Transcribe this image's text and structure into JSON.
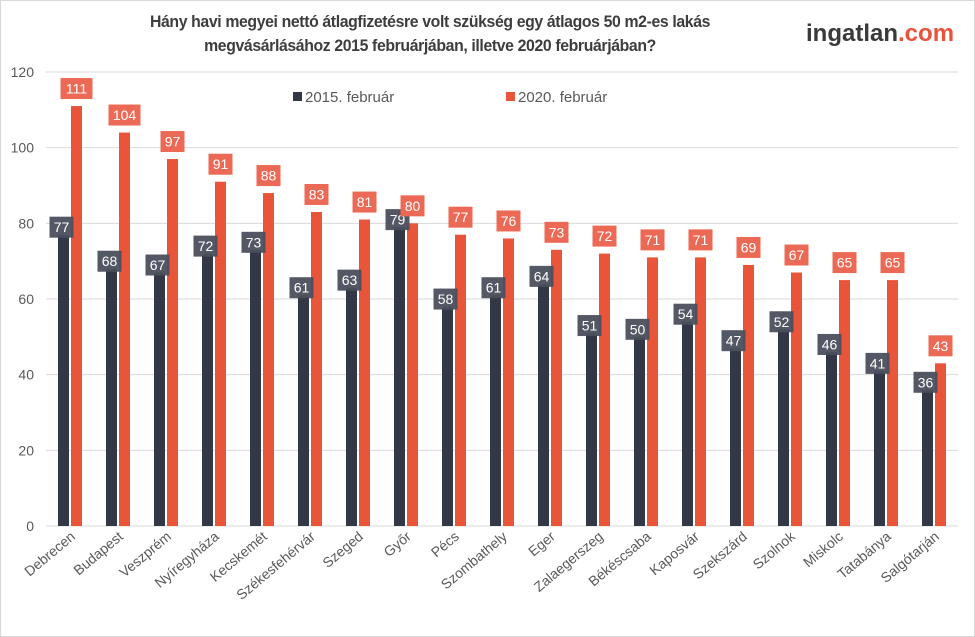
{
  "chart_data": {
    "type": "bar",
    "title": "Hány havi megyei nettó átlagfizetésre volt szükség egy átlagos 50 m2-es lakás megvásárlásához 2015 februárjában, illetve 2020 februárjában?",
    "title_lines": [
      "Hány havi megyei nettó átlagfizetésre volt szükség egy átlagos 50 m2-es lakás",
      "megvásárlásához 2015 februárjában, illetve 2020 februárjában?"
    ],
    "xlabel": "",
    "ylabel": "",
    "ylim": [
      0,
      120
    ],
    "yticks": [
      0,
      20,
      40,
      60,
      80,
      100,
      120
    ],
    "grid": true,
    "legend_position": "top-center",
    "categories": [
      "Debrecen",
      "Budapest",
      "Veszprém",
      "Nyíregyháza",
      "Kecskemét",
      "Székesfehérvár",
      "Szeged",
      "Győr",
      "Pécs",
      "Szombathely",
      "Eger",
      "Zalaegerszeg",
      "Békéscsaba",
      "Kaposvár",
      "Szekszárd",
      "Szolnok",
      "Miskolc",
      "Tatabánya",
      "Salgótarján"
    ],
    "series": [
      {
        "name": "2015. február",
        "color": "#323846",
        "label_color": "#4a4f5c",
        "values": [
          77,
          68,
          67,
          72,
          73,
          61,
          63,
          79,
          58,
          61,
          64,
          51,
          50,
          54,
          47,
          52,
          46,
          41,
          36
        ]
      },
      {
        "name": "2020. február",
        "color": "#e8553a",
        "label_color": "#ec6a55",
        "values": [
          111,
          104,
          97,
          91,
          88,
          83,
          81,
          80,
          77,
          76,
          73,
          72,
          71,
          71,
          69,
          67,
          65,
          65,
          43
        ]
      }
    ]
  },
  "brand": {
    "logo_part1": "ingatlan",
    "logo_part2": ".com"
  }
}
